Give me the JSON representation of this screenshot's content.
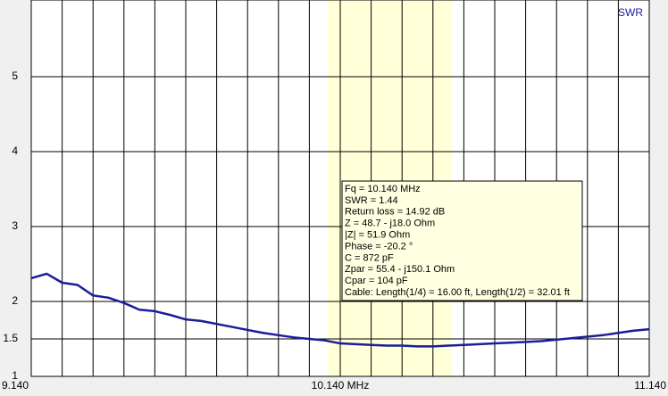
{
  "chart_data": {
    "type": "line",
    "series": [
      {
        "name": "SWR",
        "color": "#1c1c9c",
        "values": [
          2.31,
          2.37,
          2.25,
          2.22,
          2.08,
          2.05,
          1.98,
          1.89,
          1.87,
          1.82,
          1.76,
          1.74,
          1.7,
          1.66,
          1.62,
          1.58,
          1.55,
          1.52,
          1.5,
          1.48,
          1.44,
          1.43,
          1.42,
          1.41,
          1.41,
          1.4,
          1.4,
          1.41,
          1.42,
          1.43,
          1.44,
          1.45,
          1.46,
          1.47,
          1.49,
          1.51,
          1.53,
          1.55,
          1.58,
          1.61,
          1.63
        ]
      }
    ],
    "x": [
      9.14,
      9.19,
      9.24,
      9.29,
      9.34,
      9.39,
      9.44,
      9.49,
      9.54,
      9.59,
      9.64,
      9.69,
      9.74,
      9.79,
      9.84,
      9.89,
      9.94,
      9.99,
      10.04,
      10.09,
      10.14,
      10.19,
      10.24,
      10.29,
      10.34,
      10.39,
      10.44,
      10.49,
      10.54,
      10.59,
      10.64,
      10.69,
      10.74,
      10.79,
      10.84,
      10.89,
      10.94,
      10.99,
      11.04,
      11.09,
      11.14
    ],
    "xlim": [
      9.14,
      11.14
    ],
    "xticks": [
      {
        "value": 9.14,
        "label": "9.140"
      },
      {
        "value": 10.14,
        "label": "10.140 MHz"
      },
      {
        "value": 11.14,
        "label": "11.140"
      }
    ],
    "xminor_ticks": [
      9.24,
      9.34,
      9.44,
      9.54,
      9.64,
      9.74,
      9.84,
      9.94,
      10.04,
      10.24,
      10.34,
      10.44,
      10.54,
      10.64,
      10.74,
      10.84,
      10.94,
      11.04
    ],
    "ylim": [
      1,
      6
    ],
    "yticks": [
      1,
      1.5,
      2,
      3,
      4,
      5
    ],
    "band": [
      10.1,
      10.5
    ],
    "band_color": "#ffffd8",
    "grid": true,
    "info_box": [
      "Fq = 10.140 MHz",
      "SWR = 1.44",
      "Return loss = 14.92 dB",
      "Z = 48.7 - j18.0 Ohm",
      "|Z| = 51.9 Ohm",
      "Phase = -20.2 °",
      "C = 872 pF",
      "Zpar = 55.4 - j150.1 Ohm",
      "Cpar = 104 pF",
      "Cable: Length(1/4) = 16.00 ft, Length(1/2) = 32.01 ft"
    ]
  }
}
